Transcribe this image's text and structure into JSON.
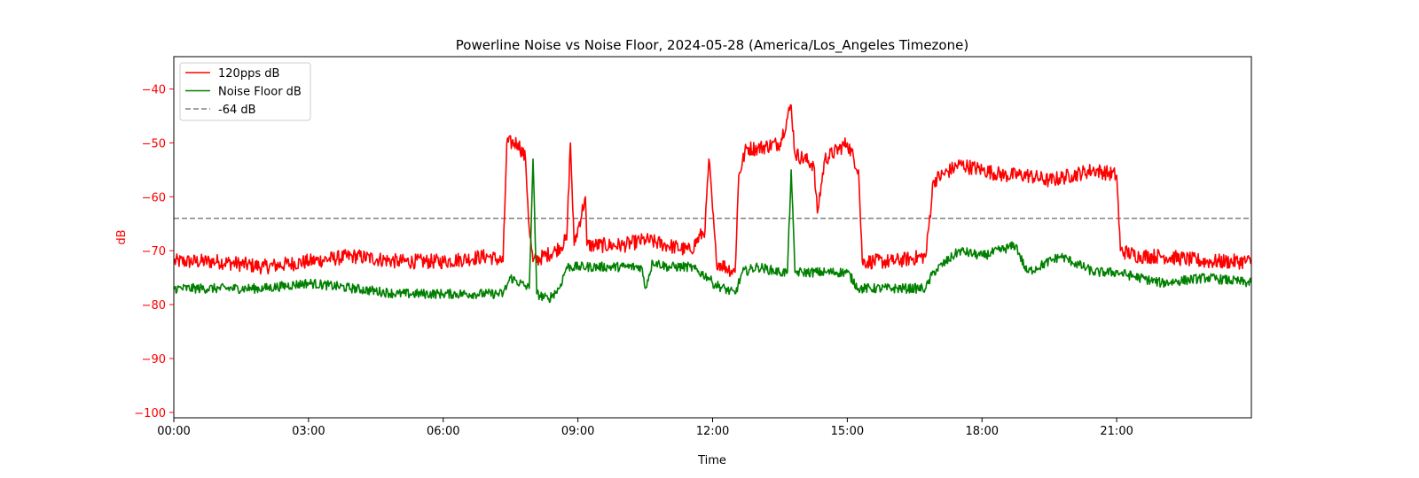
{
  "chart_data": {
    "type": "line",
    "title": "Powerline Noise vs Noise Floor, 2024-05-28 (America/Los_Angeles Timezone)",
    "xlabel": "Time",
    "ylabel": "dB",
    "x_ticks": [
      "00:00",
      "03:00",
      "06:00",
      "09:00",
      "12:00",
      "15:00",
      "18:00",
      "21:00"
    ],
    "x_tick_hours": [
      0,
      3,
      6,
      9,
      12,
      15,
      18,
      21
    ],
    "xlim_hours": [
      0,
      24
    ],
    "ylim": [
      -101,
      -34
    ],
    "y_ticks": [
      -100,
      -90,
      -80,
      -70,
      -60,
      -50,
      -40
    ],
    "legend_position": "upper-left",
    "grid": false,
    "colors": {
      "signal": "#ff0000",
      "floor": "#008000",
      "threshold": "#808080",
      "ylabel": "#ff0000"
    },
    "threshold": {
      "name": "-64 dB",
      "value": -64
    },
    "series": [
      {
        "name": "120pps dB",
        "color": "#ff0000",
        "points": [
          [
            "00:00",
            -72
          ],
          [
            "01:00",
            -72
          ],
          [
            "02:00",
            -73
          ],
          [
            "03:00",
            -72
          ],
          [
            "04:00",
            -71
          ],
          [
            "05:00",
            -72
          ],
          [
            "06:00",
            -72
          ],
          [
            "07:00",
            -71
          ],
          [
            "07:20",
            -72
          ],
          [
            "07:25",
            -50
          ],
          [
            "07:40",
            -50
          ],
          [
            "07:50",
            -53
          ],
          [
            "07:55",
            -66
          ],
          [
            "08:00",
            -72
          ],
          [
            "08:30",
            -70
          ],
          [
            "08:45",
            -68
          ],
          [
            "08:50",
            -50
          ],
          [
            "08:55",
            -69
          ],
          [
            "09:10",
            -60
          ],
          [
            "09:12",
            -69
          ],
          [
            "10:00",
            -69
          ],
          [
            "10:30",
            -68
          ],
          [
            "11:00",
            -69
          ],
          [
            "11:30",
            -70
          ],
          [
            "11:50",
            -66
          ],
          [
            "11:55",
            -53
          ],
          [
            "12:05",
            -72
          ],
          [
            "12:30",
            -74
          ],
          [
            "12:35",
            -56
          ],
          [
            "12:45",
            -51
          ],
          [
            "13:00",
            -51
          ],
          [
            "13:30",
            -50
          ],
          [
            "13:45",
            -43
          ],
          [
            "13:50",
            -52
          ],
          [
            "14:15",
            -54
          ],
          [
            "14:20",
            -63
          ],
          [
            "14:30",
            -53
          ],
          [
            "15:00",
            -50
          ],
          [
            "15:15",
            -55
          ],
          [
            "15:20",
            -72
          ],
          [
            "16:00",
            -72
          ],
          [
            "16:45",
            -71
          ],
          [
            "16:55",
            -57
          ],
          [
            "17:30",
            -54
          ],
          [
            "18:00",
            -55
          ],
          [
            "18:30",
            -56
          ],
          [
            "19:00",
            -56
          ],
          [
            "19:30",
            -57
          ],
          [
            "20:00",
            -56
          ],
          [
            "20:30",
            -55
          ],
          [
            "21:00",
            -56
          ],
          [
            "21:05",
            -70
          ],
          [
            "21:30",
            -71
          ],
          [
            "22:00",
            -71
          ],
          [
            "23:00",
            -72
          ],
          [
            "24:00",
            -72
          ]
        ]
      },
      {
        "name": "Noise Floor dB",
        "color": "#008000",
        "points": [
          [
            "00:00",
            -77
          ],
          [
            "01:00",
            -77
          ],
          [
            "02:00",
            -77
          ],
          [
            "03:00",
            -76
          ],
          [
            "04:00",
            -77
          ],
          [
            "05:00",
            -78
          ],
          [
            "06:00",
            -78
          ],
          [
            "07:00",
            -78
          ],
          [
            "07:20",
            -78
          ],
          [
            "07:30",
            -75
          ],
          [
            "07:55",
            -77
          ],
          [
            "08:00",
            -53
          ],
          [
            "08:05",
            -78
          ],
          [
            "08:20",
            -79
          ],
          [
            "08:35",
            -77
          ],
          [
            "08:45",
            -73
          ],
          [
            "09:00",
            -73
          ],
          [
            "10:00",
            -73
          ],
          [
            "10:25",
            -73
          ],
          [
            "10:30",
            -77
          ],
          [
            "10:40",
            -72
          ],
          [
            "11:00",
            -73
          ],
          [
            "11:30",
            -73
          ],
          [
            "11:55",
            -75
          ],
          [
            "12:00",
            -76
          ],
          [
            "12:30",
            -78
          ],
          [
            "12:40",
            -74
          ],
          [
            "13:00",
            -73
          ],
          [
            "13:30",
            -74
          ],
          [
            "13:40",
            -74
          ],
          [
            "13:45",
            -55
          ],
          [
            "13:50",
            -74
          ],
          [
            "14:00",
            -74
          ],
          [
            "14:30",
            -74
          ],
          [
            "15:00",
            -74
          ],
          [
            "15:15",
            -77
          ],
          [
            "16:00",
            -77
          ],
          [
            "16:45",
            -77
          ],
          [
            "16:55",
            -74
          ],
          [
            "17:30",
            -70
          ],
          [
            "18:00",
            -71
          ],
          [
            "18:45",
            -69
          ],
          [
            "19:00",
            -74
          ],
          [
            "19:45",
            -71
          ],
          [
            "20:00",
            -72
          ],
          [
            "20:30",
            -74
          ],
          [
            "21:00",
            -74
          ],
          [
            "21:30",
            -75
          ],
          [
            "22:00",
            -76
          ],
          [
            "23:00",
            -75
          ],
          [
            "24:00",
            -76
          ]
        ]
      }
    ]
  }
}
